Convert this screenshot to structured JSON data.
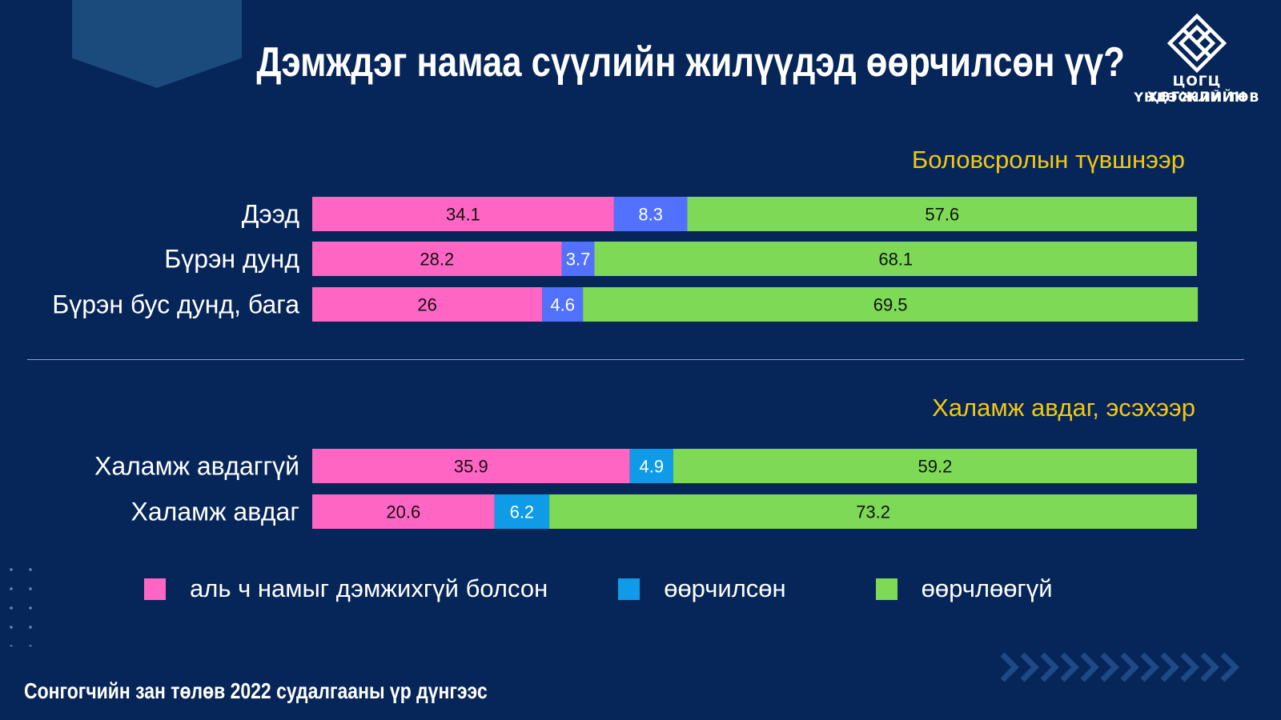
{
  "title": "Дэмждэг намаа сүүлийн жилүүдэд өөрчилсөн үү?",
  "logo": {
    "line1": "ЦОГЦ ХӨГЖЛИЙН",
    "line2": "ҮНДЭСНИЙ ТӨВ",
    "icon": "diamond-emblem-icon"
  },
  "footer": "Сонгогчийн зан төлөв 2022 судалгааны үр дүнгээс",
  "colors": {
    "background": "#062659",
    "accent": "#f2c811",
    "series": [
      "#ff66c4",
      "#5271ff",
      "#7ed957"
    ],
    "legend": [
      "#ff66c4",
      "#0f9be8",
      "#7ed957"
    ]
  },
  "legend": [
    {
      "label": "аль ч намыг дэмжихгүй болсон",
      "color": "#ff66c4"
    },
    {
      "label": "өөрчилсөн",
      "color": "#0f9be8"
    },
    {
      "label": "өөрчлөөгүй",
      "color": "#7ed957"
    }
  ],
  "chart_data": [
    {
      "type": "bar",
      "orientation": "horizontal",
      "stacked": true,
      "title": "Боловсролын түвшнээр",
      "categories": [
        "Дээд",
        "Бүрэн дунд",
        "Бүрэн бус дунд, бага"
      ],
      "series": [
        {
          "name": "аль ч намыг дэмжихгүй болсон",
          "values": [
            34.1,
            28.2,
            26
          ],
          "color": "#ff66c4"
        },
        {
          "name": "өөрчилсөн",
          "values": [
            8.3,
            3.7,
            4.6
          ],
          "color": "#5271ff"
        },
        {
          "name": "өөрчлөөгүй",
          "values": [
            57.6,
            68.1,
            69.5
          ],
          "color": "#7ed957"
        }
      ],
      "xlim": [
        0,
        100
      ],
      "grid": false,
      "legend_position": "bottom"
    },
    {
      "type": "bar",
      "orientation": "horizontal",
      "stacked": true,
      "title": "Халамж авдаг, эсэхээр",
      "categories": [
        "Халамж авдаггүй",
        "Халамж авдаг"
      ],
      "series": [
        {
          "name": "аль ч намыг дэмжихгүй болсон",
          "values": [
            35.9,
            20.6
          ],
          "color": "#ff66c4"
        },
        {
          "name": "өөрчилсөн",
          "values": [
            4.9,
            6.2
          ],
          "color": "#0f9be8"
        },
        {
          "name": "өөрчлөөгүй",
          "values": [
            59.2,
            73.2
          ],
          "color": "#7ed957"
        }
      ],
      "xlim": [
        0,
        100
      ],
      "grid": false,
      "legend_position": "bottom"
    }
  ]
}
